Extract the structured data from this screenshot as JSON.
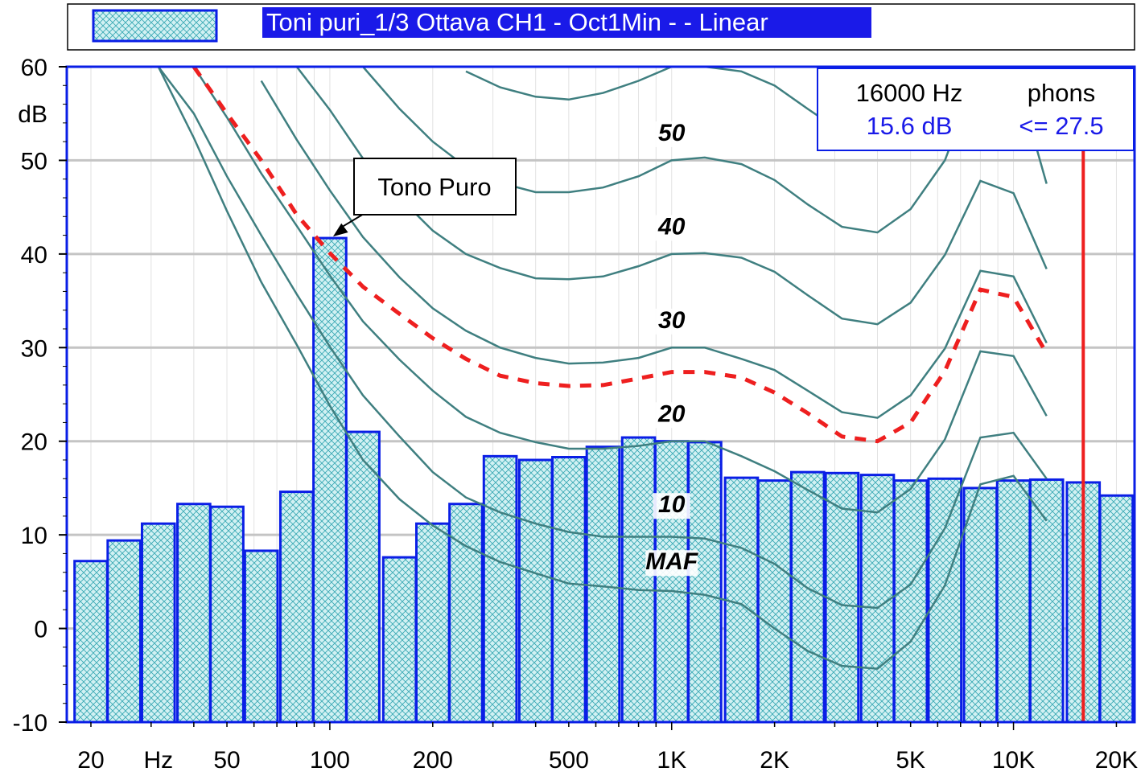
{
  "legend": {
    "title": "Toni puri_1/3 Ottava CH1 - Oct1Min -  - Linear"
  },
  "cursor_readout": {
    "frequency": "16000 Hz",
    "level": "15.6 dB",
    "phons_label": "phons",
    "phons_value": "<= 27.5"
  },
  "annotation": {
    "text": "Tono Puro"
  },
  "colors": {
    "bar_fill": "#d2f1f3",
    "bar_hatch": "#3aa9b4",
    "bar_edge": "#0a1ee6",
    "curve": "#3f7f80",
    "threshold_curve": "#ee1f1f",
    "cursor_line": "#ee1f1f",
    "cursor_level_text": "#1a1ae8",
    "legend_bg": "#1a1ae8",
    "grid": "#c4c4c4",
    "frame": "#0a1ee6"
  },
  "chart_data": {
    "type": "bar",
    "x_scale": "log",
    "x_unit": "Hz",
    "y_unit": "dB",
    "ylim": [
      -10,
      60
    ],
    "xlim": [
      17,
      22600
    ],
    "y_ticks": [
      -10,
      0,
      10,
      20,
      30,
      40,
      50,
      60
    ],
    "x_tick_labels": [
      {
        "label": "20",
        "value": 20
      },
      {
        "label": "Hz",
        "value": 31.5
      },
      {
        "label": "50",
        "value": 50
      },
      {
        "label": "100",
        "value": 100
      },
      {
        "label": "200",
        "value": 200
      },
      {
        "label": "500",
        "value": 500
      },
      {
        "label": "1K",
        "value": 1000
      },
      {
        "label": "2K",
        "value": 2000
      },
      {
        "label": "5K",
        "value": 5000
      },
      {
        "label": "10K",
        "value": 10000
      },
      {
        "label": "20K",
        "value": 20000
      }
    ],
    "grid": true,
    "legend_position": "top",
    "series": [
      {
        "name": "Toni puri_1/3 Ottava CH1 - Oct1Min -  - Linear",
        "type": "bar",
        "x": [
          20,
          25,
          31.5,
          40,
          50,
          63,
          80,
          100,
          125,
          160,
          200,
          250,
          315,
          400,
          500,
          630,
          800,
          1000,
          1250,
          1600,
          2000,
          2500,
          3150,
          4000,
          5000,
          6300,
          8000,
          10000,
          12500,
          16000,
          20000
        ],
        "values": [
          7.2,
          9.4,
          11.2,
          13.3,
          13.0,
          8.3,
          14.6,
          41.7,
          21.0,
          7.6,
          11.2,
          13.3,
          18.4,
          18.0,
          18.3,
          19.4,
          20.4,
          20.0,
          19.9,
          16.1,
          15.8,
          16.7,
          16.6,
          16.4,
          15.8,
          16.0,
          15.0,
          15.8,
          15.9,
          15.6,
          14.2
        ]
      }
    ],
    "isophon_curves": [
      {
        "label": "MAF",
        "x": [
          31.5,
          40,
          50,
          63,
          80,
          100,
          125,
          160,
          200,
          250,
          315,
          400,
          500,
          630,
          800,
          1000,
          1250,
          1600,
          2000,
          2500,
          3150,
          4000,
          5000,
          6300,
          8000,
          10000,
          12500
        ],
        "y": [
          60.0,
          52.4,
          44.6,
          37.0,
          30.3,
          23.8,
          18.0,
          13.8,
          11.0,
          8.8,
          7.1,
          5.9,
          4.8,
          4.5,
          4.1,
          4.0,
          3.6,
          2.6,
          0.0,
          -2.4,
          -4.0,
          -4.3,
          -1.4,
          4.6,
          15.4,
          16.3,
          11.5
        ]
      },
      {
        "label": "10",
        "x": [
          31.5,
          40,
          50,
          63,
          80,
          100,
          125,
          160,
          200,
          250,
          315,
          400,
          500,
          630,
          800,
          1000,
          1250,
          1600,
          2000,
          2500,
          3150,
          4000,
          5000,
          6300,
          8000,
          10000,
          12500
        ],
        "y": [
          60.0,
          55.0,
          48.3,
          42.0,
          35.7,
          30.1,
          24.9,
          20.5,
          16.7,
          14.0,
          12.4,
          11.2,
          10.3,
          9.8,
          9.8,
          9.8,
          9.6,
          8.6,
          6.9,
          4.3,
          2.5,
          2.2,
          4.7,
          10.7,
          20.4,
          20.9,
          16.0
        ]
      },
      {
        "label": "20",
        "x": [
          40,
          50,
          63,
          80,
          100,
          125,
          160,
          200,
          250,
          315,
          400,
          500,
          630,
          800,
          1000,
          1250,
          1600,
          2000,
          2500,
          3150,
          4000,
          5000,
          6300,
          8000,
          10000,
          12500
        ],
        "y": [
          60.0,
          54.6,
          48.6,
          43.0,
          37.7,
          32.8,
          28.7,
          25.4,
          22.6,
          20.9,
          19.9,
          19.2,
          19.2,
          19.5,
          20.0,
          20.0,
          18.4,
          16.8,
          14.8,
          12.8,
          12.4,
          14.9,
          20.2,
          29.6,
          29.1,
          22.7
        ]
      },
      {
        "label": "30",
        "x": [
          63,
          80,
          100,
          125,
          160,
          200,
          250,
          315,
          400,
          500,
          630,
          800,
          1000,
          1250,
          1600,
          2000,
          2500,
          3150,
          4000,
          5000,
          6300,
          8000,
          10000,
          12500
        ],
        "y": [
          58.5,
          52.2,
          46.8,
          41.8,
          37.5,
          34.2,
          31.8,
          30.0,
          28.9,
          28.3,
          28.4,
          28.9,
          30.0,
          30.0,
          28.8,
          27.6,
          25.4,
          23.1,
          22.5,
          24.9,
          29.9,
          38.2,
          37.6,
          30.5
        ]
      },
      {
        "label": "",
        "x": [
          80,
          100,
          125,
          160,
          200,
          250,
          315,
          400,
          500,
          630,
          800,
          1000,
          1250,
          1600,
          2000,
          2500,
          3150,
          4000,
          5000,
          6300,
          8000,
          10000,
          12500
        ],
        "y": [
          60.0,
          55.4,
          50.2,
          46.0,
          42.5,
          40.0,
          38.5,
          37.4,
          37.3,
          37.6,
          38.7,
          40.0,
          40.1,
          39.6,
          38.1,
          35.6,
          33.1,
          32.5,
          34.8,
          39.9,
          47.8,
          46.5,
          38.4
        ]
      },
      {
        "label": "",
        "x": [
          125,
          160,
          200,
          250,
          315,
          400,
          500,
          630,
          800,
          1000,
          1250,
          1600,
          2000,
          2500,
          3150,
          4000,
          5000,
          6300,
          8000,
          10000,
          12500
        ],
        "y": [
          60.0,
          55.5,
          52.0,
          49.3,
          47.6,
          46.6,
          46.6,
          47.1,
          48.3,
          50.0,
          50.3,
          49.6,
          47.9,
          45.3,
          42.9,
          42.3,
          44.8,
          50.0,
          60.0,
          60.0,
          47.5
        ]
      },
      {
        "label": "",
        "x": [
          250,
          315,
          400,
          500,
          630,
          800,
          1000,
          1250,
          1600,
          2000,
          2500,
          3150,
          4000,
          5000,
          6300,
          8000,
          10000,
          12500
        ],
        "y": [
          59.5,
          57.8,
          56.8,
          56.5,
          57.2,
          58.5,
          60.0,
          60.0,
          59.5,
          58.0,
          55.5,
          53.0,
          52.4,
          55.0,
          60.0,
          60.0,
          60.0,
          54.4
        ]
      }
    ],
    "curve_labels": [
      {
        "text": "MAF",
        "x": 1000,
        "y": 6.3
      },
      {
        "text": "10",
        "x": 1000,
        "y": 12.4
      },
      {
        "text": "20",
        "x": 1000,
        "y": 22.1
      },
      {
        "text": "30",
        "x": 1000,
        "y": 32.1
      },
      {
        "text": "40",
        "x": 1000,
        "y": 42.1
      },
      {
        "text": "50",
        "x": 1000,
        "y": 52.1
      }
    ],
    "threshold_curve": {
      "x": [
        40,
        50,
        63,
        80,
        100,
        125,
        160,
        200,
        250,
        315,
        400,
        500,
        630,
        800,
        1000,
        1250,
        1600,
        2000,
        2500,
        3150,
        4000,
        5000,
        6300,
        8000,
        10000,
        12500
      ],
      "y": [
        60.0,
        55.0,
        50.0,
        44.2,
        40.1,
        36.5,
        33.6,
        31.0,
        28.8,
        27.0,
        26.2,
        25.9,
        26.0,
        26.7,
        27.4,
        27.4,
        26.8,
        25.2,
        23.0,
        20.5,
        20.0,
        22.0,
        27.5,
        36.2,
        35.4,
        29.4
      ]
    },
    "cursor": {
      "x": 16000
    },
    "annotation_point": {
      "x": 100,
      "y": 41.7
    }
  }
}
